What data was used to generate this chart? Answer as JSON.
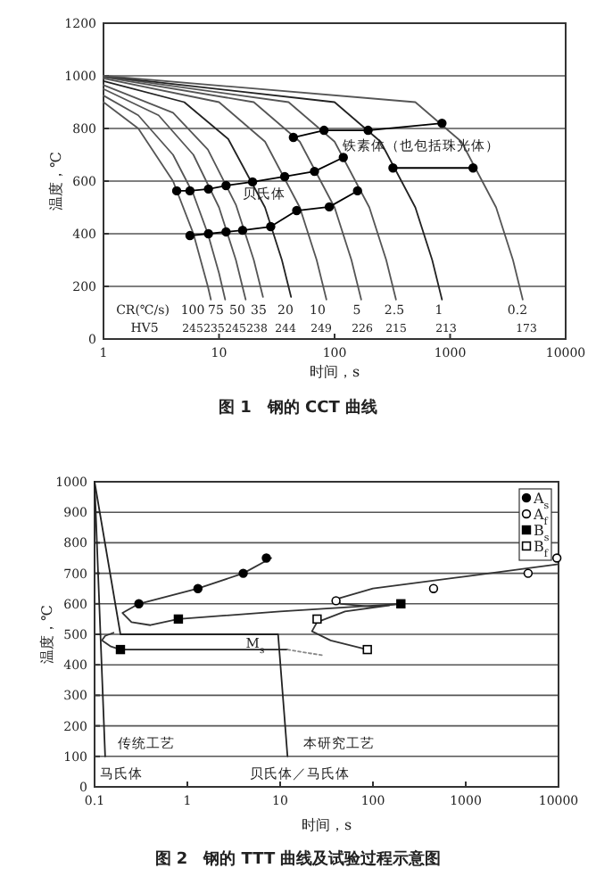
{
  "chart_data": [
    {
      "type": "line",
      "title": "图 1　钢的 CCT 曲线",
      "xlabel": "时间，s",
      "ylabel": "温度，℃",
      "log": "x",
      "xlim": [
        1,
        10000
      ],
      "xticks": [
        1,
        10,
        100,
        1000,
        10000
      ],
      "ylim": [
        0,
        1200
      ],
      "yticks": [
        0,
        200,
        400,
        600,
        800,
        1000,
        1200
      ],
      "grid": "y",
      "series": [
        {
          "type": "line",
          "name": "100",
          "color": "#555555",
          "x": [
            1,
            2,
            4,
            6,
            8,
            8.5
          ],
          "values": [
            900,
            800,
            600,
            400,
            200,
            150
          ]
        },
        {
          "type": "line",
          "name": "75",
          "color": "#555555",
          "x": [
            1,
            2,
            4,
            6,
            8,
            10,
            11.3
          ],
          "values": [
            925,
            850,
            700,
            550,
            400,
            250,
            150
          ]
        },
        {
          "type": "line",
          "name": "50",
          "color": "#555555",
          "x": [
            1,
            3,
            6,
            10,
            14,
            17
          ],
          "values": [
            950,
            850,
            700,
            500,
            300,
            150
          ]
        },
        {
          "type": "line",
          "name": "35",
          "color": "#555555",
          "x": [
            1,
            4,
            8,
            14,
            20,
            24
          ],
          "values": [
            965,
            860,
            720,
            510,
            300,
            160
          ]
        },
        {
          "type": "line",
          "name": "20",
          "color": "#222222",
          "x": [
            1,
            5,
            12,
            25,
            35,
            42
          ],
          "values": [
            980,
            900,
            760,
            500,
            300,
            160
          ]
        },
        {
          "type": "line",
          "name": "10",
          "color": "#555555",
          "x": [
            1,
            10,
            25,
            50,
            70,
            85
          ],
          "values": [
            990,
            900,
            750,
            500,
            300,
            150
          ]
        },
        {
          "type": "line",
          "name": "5",
          "color": "#555555",
          "x": [
            1,
            20,
            50,
            100,
            140,
            170
          ],
          "values": [
            995,
            900,
            750,
            500,
            300,
            150
          ]
        },
        {
          "type": "line",
          "name": "2.5",
          "color": "#555555",
          "x": [
            1,
            40,
            100,
            200,
            280,
            340
          ],
          "values": [
            998,
            900,
            750,
            500,
            300,
            150
          ]
        },
        {
          "type": "line",
          "name": "1",
          "color": "#222222",
          "x": [
            1,
            100,
            250,
            500,
            700,
            850
          ],
          "values": [
            999,
            900,
            750,
            500,
            300,
            150
          ]
        },
        {
          "type": "line",
          "name": "0.2",
          "color": "#555555",
          "x": [
            1,
            500,
            1250,
            2500,
            3500,
            4250
          ],
          "values": [
            1000,
            900,
            750,
            500,
            300,
            150
          ]
        },
        {
          "type": "line",
          "color": "#000000",
          "marker": "circle",
          "x": [
            44,
            81,
            195,
            850
          ],
          "values": [
            766,
            793,
            793,
            820
          ]
        },
        {
          "type": "line",
          "color": "#000000",
          "marker": "circle",
          "x": [
            320,
            1580
          ],
          "values": [
            650,
            650
          ]
        },
        {
          "type": "line",
          "color": "#000000",
          "marker": "circle",
          "x": [
            4.3,
            5.6,
            8.1,
            11.5,
            19.5,
            37,
            67,
            119
          ],
          "values": [
            563,
            563,
            570,
            583,
            597,
            617,
            637,
            690
          ]
        },
        {
          "type": "line",
          "color": "#000000",
          "marker": "circle",
          "x": [
            5.6,
            8.1,
            11.5,
            16,
            28,
            47,
            90,
            158
          ],
          "values": [
            393,
            400,
            407,
            413,
            427,
            488,
            502,
            563
          ]
        }
      ],
      "annotations": [
        "铁素体（也包括珠光体）",
        "贝氏体",
        "CR(℃/s)",
        "HV5",
        "245",
        "235",
        "245",
        "238",
        "244",
        "249",
        "226",
        "215",
        "213",
        "173"
      ]
    },
    {
      "type": "line",
      "title": "图 2　钢的 TTT 曲线及试验过程示意图",
      "xlabel": "时间，s",
      "ylabel": "温度，℃",
      "log": "x",
      "xlim": [
        0.1,
        10000
      ],
      "xticks": [
        0.1,
        1,
        10,
        100,
        1000,
        10000
      ],
      "ylim": [
        0,
        1000
      ],
      "yticks": [
        0,
        100,
        200,
        300,
        400,
        500,
        600,
        700,
        800,
        900,
        1000
      ],
      "grid": "y",
      "legend": "top right",
      "series": [
        {
          "type": "line",
          "color": "#333333",
          "x": [
            8,
            4,
            1.3,
            0.3,
            0.2,
            0.25,
            0.4,
            0.8,
            10,
            200
          ],
          "values": [
            750,
            700,
            650,
            600,
            570,
            540,
            530,
            550,
            575,
            600
          ]
        },
        {
          "type": "line",
          "color": "#333333",
          "x": [
            0.19,
            0.15,
            0.12,
            0.13,
            0.16
          ],
          "values": [
            450,
            460,
            480,
            495,
            505
          ]
        },
        {
          "type": "line",
          "color": "#333333",
          "x": [
            10000,
            1000,
            100,
            40,
            45,
            100,
            200
          ],
          "values": [
            730,
            690,
            650,
            615,
            600,
            590,
            600
          ]
        },
        {
          "type": "line",
          "color": "#333333",
          "x": [
            150,
            50,
            25,
            22,
            35,
            87
          ],
          "values": [
            595,
            575,
            540,
            510,
            480,
            450
          ]
        },
        {
          "type": "line",
          "color": "#222222",
          "x": [
            0.1,
            0.13
          ],
          "values": [
            1000,
            100
          ]
        },
        {
          "type": "line",
          "color": "#222222",
          "x": [
            0.1,
            0.19,
            9.5,
            12
          ],
          "values": [
            1000,
            500,
            500,
            100
          ]
        },
        {
          "type": "line",
          "color": "#222222",
          "x": [
            0.2,
            12
          ],
          "values": [
            450,
            450
          ]
        },
        {
          "type": "line",
          "color": "#888888",
          "line_style": "dotted",
          "x": [
            12,
            30
          ],
          "values": [
            450,
            430
          ]
        },
        {
          "type": "scatter",
          "name": "A$_{s}$",
          "color": "#000000",
          "marker": "circle",
          "x": [
            0.3,
            1.3,
            4,
            7.1
          ],
          "values": [
            600,
            650,
            700,
            750
          ]
        },
        {
          "type": "scatter",
          "name": "A$_{f}$",
          "color": "#ffffff",
          "marker": "circle",
          "x": [
            40,
            450,
            4700,
            9600
          ],
          "values": [
            610,
            650,
            700,
            750
          ]
        },
        {
          "type": "scatter",
          "name": "B$_{s}$",
          "color": "#000000",
          "marker": "square",
          "x": [
            0.19,
            0.8,
            200
          ],
          "values": [
            450,
            550,
            600
          ]
        },
        {
          "type": "scatter",
          "name": "B$_{f}$",
          "color": "#ffffff",
          "marker": "square",
          "x": [
            25,
            87
          ],
          "values": [
            550,
            450
          ]
        }
      ],
      "annotations": [
        "传统工艺",
        "本研究工艺",
        "马氏体",
        "贝氏体／马氏体",
        "M$_{s}$"
      ]
    }
  ]
}
